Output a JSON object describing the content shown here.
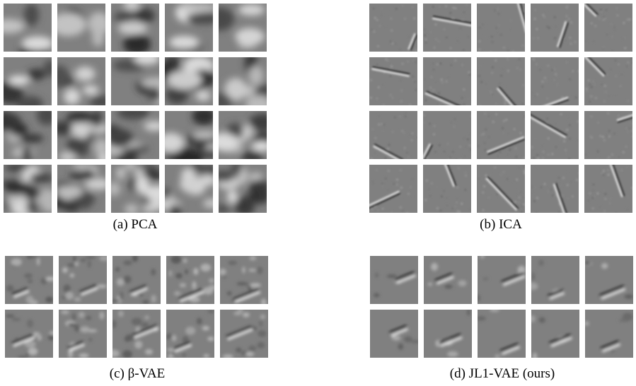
{
  "panels": [
    {
      "caption": "(a) PCA"
    },
    {
      "caption": "(b) ICA"
    },
    {
      "caption": "(c) β-VAE"
    },
    {
      "caption": "(d) JL1-VAE (ours)"
    }
  ]
}
